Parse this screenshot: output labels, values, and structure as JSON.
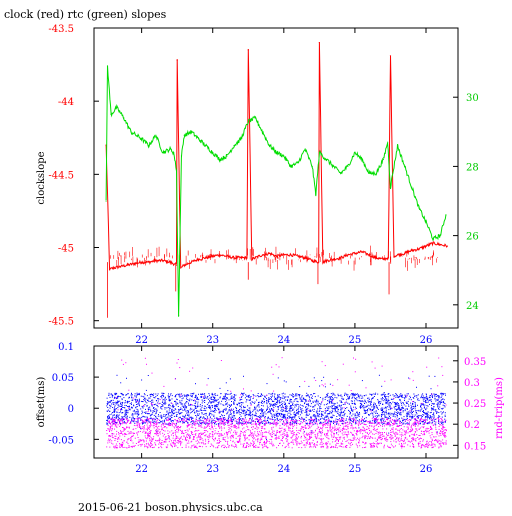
{
  "footer": "2015-06-21 boson.physics.ubc.ca",
  "colors": {
    "clock": "#ff0000",
    "rtc": "#00dd00",
    "offset": "#0000ff",
    "rnd_trip": "#ff00ff",
    "axis_top_left": "#ff0000",
    "axis_top_right": "#00cc00",
    "axis_bottom_left": "#0000ff",
    "axis_bottom_right": "#ff00ff"
  },
  "chart_data": [
    {
      "type": "line",
      "title": "clock (red) rtc (green) slopes",
      "ylabel": "clockslope",
      "xlim": [
        21.33,
        26.45
      ],
      "ylim": [
        -45.55,
        -43.5
      ],
      "y2lim": [
        23.33,
        32.0
      ],
      "x_ticks": [
        "22",
        "23",
        "24",
        "25",
        "26"
      ],
      "y_ticks": [
        "-43.5",
        "-44",
        "-44.5",
        "-45",
        "-45.5"
      ],
      "y2_ticks": [
        "24",
        "26",
        "28",
        "30"
      ],
      "grid": false,
      "series": [
        {
          "name": "clock",
          "axis": "left",
          "x": [
            21.5,
            21.55,
            21.6,
            21.7,
            21.8,
            21.9,
            22.0,
            22.1,
            22.2,
            22.3,
            22.4,
            22.49,
            22.5,
            22.55,
            22.6,
            22.7,
            22.8,
            22.9,
            23.0,
            23.1,
            23.2,
            23.3,
            23.4,
            23.48,
            23.5,
            23.55,
            23.6,
            23.7,
            23.8,
            23.9,
            24.0,
            24.1,
            24.2,
            24.3,
            24.4,
            24.49,
            24.5,
            24.55,
            24.6,
            24.7,
            24.8,
            24.9,
            25.0,
            25.1,
            25.2,
            25.3,
            25.4,
            25.47,
            25.5,
            25.55,
            25.6,
            25.7,
            25.8,
            25.9,
            26.0,
            26.1,
            26.2,
            26.3
          ],
          "y": [
            -44.3,
            -45.15,
            -45.14,
            -45.13,
            -45.12,
            -45.11,
            -45.1,
            -45.1,
            -45.09,
            -45.09,
            -45.1,
            -45.12,
            -43.72,
            -45.14,
            -45.12,
            -45.1,
            -45.08,
            -45.07,
            -45.06,
            -45.05,
            -45.06,
            -45.07,
            -45.07,
            -45.07,
            -43.65,
            -45.08,
            -45.07,
            -45.05,
            -45.04,
            -45.06,
            -45.05,
            -45.05,
            -45.06,
            -45.07,
            -45.09,
            -45.1,
            -43.6,
            -45.1,
            -45.09,
            -45.08,
            -45.07,
            -45.05,
            -45.04,
            -45.03,
            -45.05,
            -45.07,
            -45.08,
            -45.07,
            -43.69,
            -45.06,
            -45.05,
            -45.04,
            -45.02,
            -45.01,
            -44.99,
            -44.97,
            -44.98,
            -44.99
          ]
        },
        {
          "name": "rtc",
          "axis": "right",
          "x": [
            21.5,
            21.52,
            21.57,
            21.65,
            21.75,
            21.85,
            22.0,
            22.1,
            22.2,
            22.3,
            22.4,
            22.45,
            22.49,
            22.52,
            22.56,
            22.6,
            22.7,
            22.8,
            22.9,
            23.0,
            23.1,
            23.2,
            23.3,
            23.4,
            23.5,
            23.6,
            23.7,
            23.8,
            23.9,
            24.0,
            24.1,
            24.2,
            24.3,
            24.4,
            24.45,
            24.5,
            24.6,
            24.7,
            24.8,
            24.9,
            25.0,
            25.1,
            25.2,
            25.3,
            25.4,
            25.46,
            25.5,
            25.6,
            25.7,
            25.8,
            25.9,
            26.0,
            26.1,
            26.2,
            26.28
          ],
          "y": [
            27.0,
            30.9,
            29.5,
            29.7,
            29.4,
            29.0,
            28.8,
            28.6,
            28.9,
            28.4,
            28.5,
            28.4,
            27.9,
            23.7,
            28.3,
            28.9,
            29.0,
            28.8,
            28.6,
            28.4,
            28.2,
            28.3,
            28.6,
            28.8,
            29.3,
            29.4,
            29.0,
            28.6,
            28.4,
            28.3,
            28.0,
            28.1,
            28.5,
            28.0,
            27.2,
            28.4,
            28.2,
            28.0,
            27.8,
            28.0,
            28.4,
            28.2,
            27.8,
            27.8,
            28.2,
            28.7,
            27.4,
            28.6,
            28.0,
            27.4,
            26.8,
            26.4,
            25.9,
            26.0,
            26.6
          ]
        }
      ]
    },
    {
      "type": "scatter",
      "ylabel": "offset(ms)",
      "y2label": "rnd-trip(ms)",
      "xlim": [
        21.33,
        26.45
      ],
      "ylim": [
        -0.08,
        0.1
      ],
      "y2lim": [
        0.12,
        0.385
      ],
      "x_ticks": [
        "22",
        "23",
        "24",
        "25",
        "26"
      ],
      "y_ticks": [
        "0.1",
        "0.05",
        "0",
        "-0.05"
      ],
      "y2_ticks": [
        "0.35",
        "0.3",
        "0.25",
        "0.2",
        "0.15"
      ],
      "grid": false,
      "series": [
        {
          "name": "offset",
          "axis": "left",
          "x_range": [
            21.5,
            26.28
          ],
          "y_band": [
            -0.025,
            0.025
          ],
          "y_outliers": [
            -0.05,
            0.055
          ]
        },
        {
          "name": "rnd-trip",
          "axis": "right",
          "x_range": [
            21.5,
            26.28
          ],
          "y_band": [
            0.145,
            0.215
          ],
          "y_outliers": [
            0.23,
            0.36
          ]
        }
      ]
    }
  ]
}
